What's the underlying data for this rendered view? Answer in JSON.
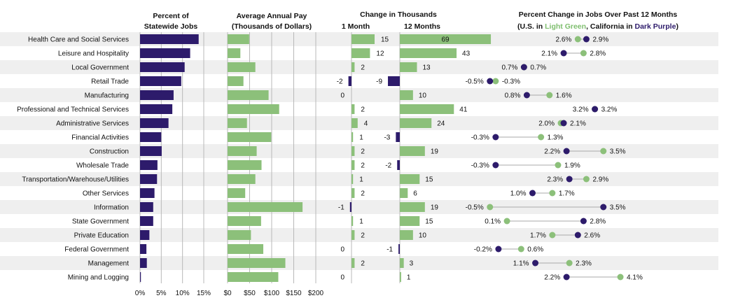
{
  "headers": {
    "pct_statewide": [
      "Percent of",
      "Statewide Jobs"
    ],
    "avg_pay": [
      "Average Annual Pay",
      "(Thousands of Dollars)"
    ],
    "change_title": "Change in Thousands",
    "change_1m": "1 Month",
    "change_12m": "12 Months",
    "pct_change_title": "Percent Change in Jobs Over Past 12 Months",
    "pct_change_sub_a": "(U.S. in ",
    "pct_change_sub_green": "Light Green",
    "pct_change_sub_b": ", California in ",
    "pct_change_sub_purple": "Dark Purple",
    "pct_change_sub_c": ")"
  },
  "colors": {
    "purple": "#2d1b6b",
    "green": "#8cc07a",
    "band": "#efefef",
    "grid": "#b8b8b8",
    "dumbbell_line": "#aaaaaa"
  },
  "chart_data": {
    "type": "bar",
    "categories": [
      "Health Care and Social Services",
      "Leisure and Hospitality",
      "Local Government",
      "Retail Trade",
      "Manufacturing",
      "Professional and Technical Services",
      "Administrative Services",
      "Financial Activities",
      "Construction",
      "Wholesale Trade",
      "Transportation/Warehouse/Utilities",
      "Other Services",
      "Information",
      "State Government",
      "Private Education",
      "Federal Government",
      "Management",
      "Mining and Logging"
    ],
    "pct_statewide": {
      "values": [
        13.8,
        11.8,
        10.5,
        9.7,
        7.9,
        7.6,
        6.7,
        5.0,
        5.1,
        4.1,
        4.0,
        3.4,
        3.1,
        3.1,
        2.2,
        1.5,
        1.6,
        0.2
      ],
      "ticks": [
        "0%",
        "5%",
        "10%",
        "15%"
      ],
      "xlim": [
        0,
        15
      ]
    },
    "avg_pay": {
      "values": [
        49,
        29,
        63,
        36,
        93,
        117,
        44,
        99,
        66,
        77,
        63,
        40,
        170,
        76,
        53,
        81,
        131,
        115
      ],
      "ticks": [
        "$0",
        "$50",
        "$100",
        "$150",
        "$200"
      ],
      "xlim": [
        0,
        200
      ]
    },
    "change_1m": {
      "values": [
        15,
        12,
        2,
        -2,
        0,
        2,
        4,
        1,
        2,
        2,
        1,
        2,
        -1,
        1,
        2,
        0,
        2,
        0
      ],
      "labels": [
        "15",
        "12",
        "2",
        "-2",
        "0",
        "2",
        "4",
        "1",
        "2",
        "2",
        "1",
        "2",
        "-1",
        "1",
        "2",
        "0",
        "2",
        "0"
      ]
    },
    "change_12m": {
      "values": [
        69,
        43,
        13,
        -9,
        10,
        41,
        24,
        -3,
        19,
        -2,
        15,
        6,
        19,
        15,
        10,
        -1,
        3,
        1
      ],
      "labels": [
        "69",
        "43",
        "13",
        "-9",
        "10",
        "41",
        "24",
        "-3",
        "19",
        "-2",
        "15",
        "6",
        "19",
        "15",
        "10",
        "-1",
        "3",
        "1"
      ]
    },
    "pct_change": {
      "series": [
        {
          "name": "U.S.",
          "color": "#8cc07a",
          "values": [
            2.6,
            2.8,
            0.7,
            -0.3,
            1.6,
            3.2,
            2.0,
            1.3,
            3.5,
            1.9,
            2.9,
            1.7,
            -0.5,
            0.1,
            1.7,
            0.6,
            2.3,
            4.1
          ]
        },
        {
          "name": "California",
          "color": "#2d1b6b",
          "values": [
            2.9,
            2.1,
            0.7,
            -0.5,
            0.8,
            3.2,
            2.1,
            -0.3,
            2.2,
            -0.3,
            2.3,
            1.0,
            3.5,
            2.8,
            2.6,
            -0.2,
            1.1,
            2.2
          ]
        }
      ],
      "labels": [
        [
          "2.6%",
          "2.9%"
        ],
        [
          "2.1%",
          "2.8%"
        ],
        [
          "0.7%",
          "0.7%"
        ],
        [
          "-0.5%",
          "-0.3%"
        ],
        [
          "0.8%",
          "1.6%"
        ],
        [
          "3.2%",
          "3.2%"
        ],
        [
          "2.0%",
          "2.1%"
        ],
        [
          "-0.3%",
          "1.3%"
        ],
        [
          "2.2%",
          "3.5%"
        ],
        [
          "-0.3%",
          "1.9%"
        ],
        [
          "2.3%",
          "2.9%"
        ],
        [
          "1.0%",
          "1.7%"
        ],
        [
          "-0.5%",
          "3.5%"
        ],
        [
          "0.1%",
          "2.8%"
        ],
        [
          "1.7%",
          "2.6%"
        ],
        [
          "-0.2%",
          "0.6%"
        ],
        [
          "1.1%",
          "2.3%"
        ],
        [
          "2.2%",
          "4.1%"
        ]
      ]
    }
  }
}
